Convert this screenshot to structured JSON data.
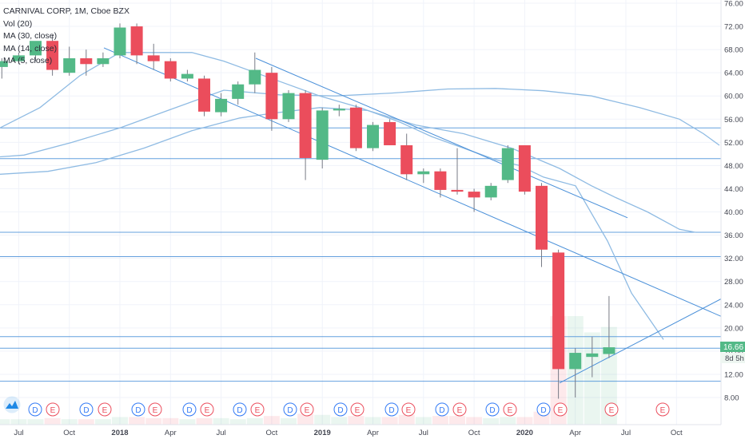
{
  "legend": {
    "title": "CARNIVAL CORP, 1M, Cboe BZX",
    "lines": [
      "Vol (20)",
      "MA (30, close)",
      "MA (14, close)",
      "MA (5, close)"
    ]
  },
  "colors": {
    "up": "#53b987",
    "down": "#eb4d5c",
    "ma": "#8fbbe3",
    "hline": "#4a90d9",
    "price_tag": "#53b987",
    "grid": "#f0f3fa",
    "axis_text": "#434651"
  },
  "price_tag": {
    "price": "16.66",
    "countdown": "8d 5h"
  },
  "chart_data": {
    "type": "candlestick",
    "title": "CARNIVAL CORP, 1M, Cboe BZX",
    "y_ticks": [
      "76.00",
      "72.00",
      "68.00",
      "64.00",
      "60.00",
      "56.00",
      "52.00",
      "48.00",
      "44.00",
      "40.00",
      "36.00",
      "32.00",
      "28.00",
      "24.00",
      "20.00",
      "16.00",
      "12.00",
      "8.00"
    ],
    "ylim": [
      5,
      77
    ],
    "x_ticks": [
      "Jul",
      "Oct",
      "2018",
      "Apr",
      "Jul",
      "Oct",
      "2019",
      "Apr",
      "Jul",
      "Oct",
      "2020",
      "Apr",
      "Jul",
      "Oct"
    ],
    "bold_ticks": [
      "2018",
      "2019",
      "2020"
    ],
    "candles": [
      {
        "date": "2017-06",
        "o": 65.0,
        "h": 66.5,
        "l": 63.0,
        "c": 66.0
      },
      {
        "date": "2017-07",
        "o": 66.0,
        "h": 67.5,
        "l": 65.5,
        "c": 67.0
      },
      {
        "date": "2017-08",
        "o": 67.0,
        "h": 69.0,
        "l": 66.0,
        "c": 69.5
      },
      {
        "date": "2017-09",
        "o": 69.5,
        "h": 70.5,
        "l": 63.5,
        "c": 64.5
      },
      {
        "date": "2017-10",
        "o": 64.0,
        "h": 68.5,
        "l": 63.5,
        "c": 66.5
      },
      {
        "date": "2017-11",
        "o": 66.5,
        "h": 68.0,
        "l": 63.5,
        "c": 65.5
      },
      {
        "date": "2017-12",
        "o": 65.5,
        "h": 67.5,
        "l": 65.0,
        "c": 66.5
      },
      {
        "date": "2018-01",
        "o": 67.0,
        "h": 72.5,
        "l": 66.5,
        "c": 71.8
      },
      {
        "date": "2018-02",
        "o": 72.0,
        "h": 72.5,
        "l": 65.5,
        "c": 67.0
      },
      {
        "date": "2018-03",
        "o": 67.0,
        "h": 69.0,
        "l": 64.5,
        "c": 66.0
      },
      {
        "date": "2018-04",
        "o": 66.0,
        "h": 66.5,
        "l": 62.5,
        "c": 63.0
      },
      {
        "date": "2018-05",
        "o": 63.0,
        "h": 64.5,
        "l": 62.5,
        "c": 63.8
      },
      {
        "date": "2018-06",
        "o": 63.0,
        "h": 63.5,
        "l": 56.5,
        "c": 57.3
      },
      {
        "date": "2018-07",
        "o": 57.2,
        "h": 60.5,
        "l": 56.5,
        "c": 59.5
      },
      {
        "date": "2018-08",
        "o": 59.5,
        "h": 62.5,
        "l": 58.5,
        "c": 62.0
      },
      {
        "date": "2018-09",
        "o": 62.0,
        "h": 67.5,
        "l": 60.5,
        "c": 64.5
      },
      {
        "date": "2018-10",
        "o": 64.0,
        "h": 65.0,
        "l": 54.0,
        "c": 56.0
      },
      {
        "date": "2018-11",
        "o": 56.0,
        "h": 61.0,
        "l": 55.5,
        "c": 60.5
      },
      {
        "date": "2018-12",
        "o": 60.5,
        "h": 61.0,
        "l": 45.5,
        "c": 49.3
      },
      {
        "date": "2019-01",
        "o": 49.0,
        "h": 58.0,
        "l": 47.5,
        "c": 57.5
      },
      {
        "date": "2019-02",
        "o": 57.5,
        "h": 58.5,
        "l": 56.5,
        "c": 57.8
      },
      {
        "date": "2019-03",
        "o": 58.0,
        "h": 58.5,
        "l": 50.5,
        "c": 51.0
      },
      {
        "date": "2019-04",
        "o": 51.0,
        "h": 55.5,
        "l": 50.5,
        "c": 55.0
      },
      {
        "date": "2019-05",
        "o": 55.5,
        "h": 56.0,
        "l": 51.5,
        "c": 51.5
      },
      {
        "date": "2019-06",
        "o": 51.5,
        "h": 53.5,
        "l": 45.5,
        "c": 46.5
      },
      {
        "date": "2019-07",
        "o": 46.5,
        "h": 47.5,
        "l": 45.0,
        "c": 47.0
      },
      {
        "date": "2019-08",
        "o": 47.0,
        "h": 47.5,
        "l": 42.5,
        "c": 43.8
      },
      {
        "date": "2019-09",
        "o": 43.8,
        "h": 51.0,
        "l": 43.0,
        "c": 43.5
      },
      {
        "date": "2019-10",
        "o": 43.5,
        "h": 44.0,
        "l": 40.0,
        "c": 42.5
      },
      {
        "date": "2019-11",
        "o": 42.5,
        "h": 45.0,
        "l": 42.0,
        "c": 44.5
      },
      {
        "date": "2019-12",
        "o": 45.5,
        "h": 51.5,
        "l": 45.0,
        "c": 51.0
      },
      {
        "date": "2020-01",
        "o": 51.5,
        "h": 51.5,
        "l": 43.0,
        "c": 43.5
      },
      {
        "date": "2020-02",
        "o": 44.5,
        "h": 45.0,
        "l": 30.5,
        "c": 33.5
      },
      {
        "date": "2020-03",
        "o": 33.0,
        "h": 33.5,
        "l": 7.8,
        "c": 12.9
      },
      {
        "date": "2020-04",
        "o": 12.9,
        "h": 16.5,
        "l": 8.0,
        "c": 15.7
      },
      {
        "date": "2020-05",
        "o": 15.0,
        "h": 18.5,
        "l": 11.5,
        "c": 15.6
      },
      {
        "date": "2020-06",
        "o": 15.5,
        "h": 25.5,
        "l": 14.8,
        "c": 16.66
      }
    ],
    "volume": [
      0.05,
      0.05,
      0.05,
      0.06,
      0.05,
      0.05,
      0.05,
      0.07,
      0.07,
      0.06,
      0.06,
      0.05,
      0.06,
      0.06,
      0.05,
      0.06,
      0.08,
      0.06,
      0.1,
      0.09,
      0.07,
      0.08,
      0.07,
      0.07,
      0.09,
      0.07,
      0.08,
      0.08,
      0.07,
      0.06,
      0.07,
      0.07,
      0.12,
      1.0,
      1.0,
      0.85,
      0.9
    ],
    "ma_lines": [
      {
        "name": "MA (30, close)",
        "points": [
          [
            0,
            49.5
          ],
          [
            30,
            49.8
          ],
          [
            90,
            52.0
          ],
          [
            150,
            54.5
          ],
          [
            210,
            57.5
          ],
          [
            280,
            61.0
          ],
          [
            350,
            60.2
          ],
          [
            420,
            60.0
          ],
          [
            490,
            60.5
          ],
          [
            560,
            61.2
          ],
          [
            620,
            61.3
          ],
          [
            680,
            60.9
          ],
          [
            740,
            60.0
          ],
          [
            800,
            58.0
          ],
          [
            850,
            56.0
          ],
          [
            880,
            53.5
          ],
          [
            900,
            51.5
          ]
        ]
      },
      {
        "name": "MA (14, close)",
        "points": [
          [
            0,
            46.5
          ],
          [
            60,
            47.0
          ],
          [
            120,
            48.5
          ],
          [
            180,
            51.0
          ],
          [
            240,
            54.0
          ],
          [
            300,
            56.2
          ],
          [
            340,
            57.0
          ],
          [
            400,
            58.0
          ],
          [
            460,
            57.5
          ],
          [
            520,
            55.0
          ],
          [
            580,
            53.5
          ],
          [
            640,
            51.0
          ],
          [
            700,
            47.5
          ],
          [
            740,
            44.5
          ],
          [
            770,
            42.5
          ],
          [
            810,
            40.0
          ],
          [
            850,
            37.0
          ],
          [
            870,
            36.5
          ]
        ]
      },
      {
        "name": "MA (5, close)",
        "points": [
          [
            0,
            54.5
          ],
          [
            50,
            58.0
          ],
          [
            100,
            63.5
          ],
          [
            150,
            67.5
          ],
          [
            200,
            67.5
          ],
          [
            240,
            67.5
          ],
          [
            280,
            66.0
          ],
          [
            320,
            64.0
          ],
          [
            360,
            62.0
          ],
          [
            400,
            60.0
          ],
          [
            450,
            58.0
          ],
          [
            500,
            55.5
          ],
          [
            540,
            53.0
          ],
          [
            580,
            51.0
          ],
          [
            620,
            49.0
          ],
          [
            650,
            48.0
          ],
          [
            680,
            46.0
          ],
          [
            720,
            44.5
          ],
          [
            760,
            35.0
          ],
          [
            790,
            26.0
          ],
          [
            810,
            22.0
          ],
          [
            830,
            18.0
          ]
        ]
      }
    ],
    "channel_lines": [
      {
        "from": [
          130,
          68.3
        ],
        "to": [
          902,
          22.0
        ]
      },
      {
        "from": [
          320,
          66.5
        ],
        "to": [
          785,
          39.0
        ]
      },
      {
        "from": [
          700,
          10.5
        ],
        "to": [
          902,
          25.0
        ]
      }
    ],
    "horizontal_lines": [
      54.5,
      49.2,
      36.5,
      32.3,
      18.5,
      16.5,
      10.8
    ],
    "events": [
      {
        "x": 44,
        "type": "D"
      },
      {
        "x": 66,
        "type": "E"
      },
      {
        "x": 108,
        "type": "D"
      },
      {
        "x": 131,
        "type": "E"
      },
      {
        "x": 173,
        "type": "D"
      },
      {
        "x": 194,
        "type": "E"
      },
      {
        "x": 237,
        "type": "D"
      },
      {
        "x": 259,
        "type": "E"
      },
      {
        "x": 300,
        "type": "D"
      },
      {
        "x": 322,
        "type": "E"
      },
      {
        "x": 363,
        "type": "D"
      },
      {
        "x": 384,
        "type": "E"
      },
      {
        "x": 426,
        "type": "D"
      },
      {
        "x": 447,
        "type": "E"
      },
      {
        "x": 490,
        "type": "D"
      },
      {
        "x": 511,
        "type": "E"
      },
      {
        "x": 553,
        "type": "D"
      },
      {
        "x": 575,
        "type": "E"
      },
      {
        "x": 616,
        "type": "D"
      },
      {
        "x": 638,
        "type": "E"
      },
      {
        "x": 680,
        "type": "D"
      },
      {
        "x": 701,
        "type": "E"
      },
      {
        "x": 765,
        "type": "E"
      },
      {
        "x": 829,
        "type": "E"
      }
    ]
  }
}
